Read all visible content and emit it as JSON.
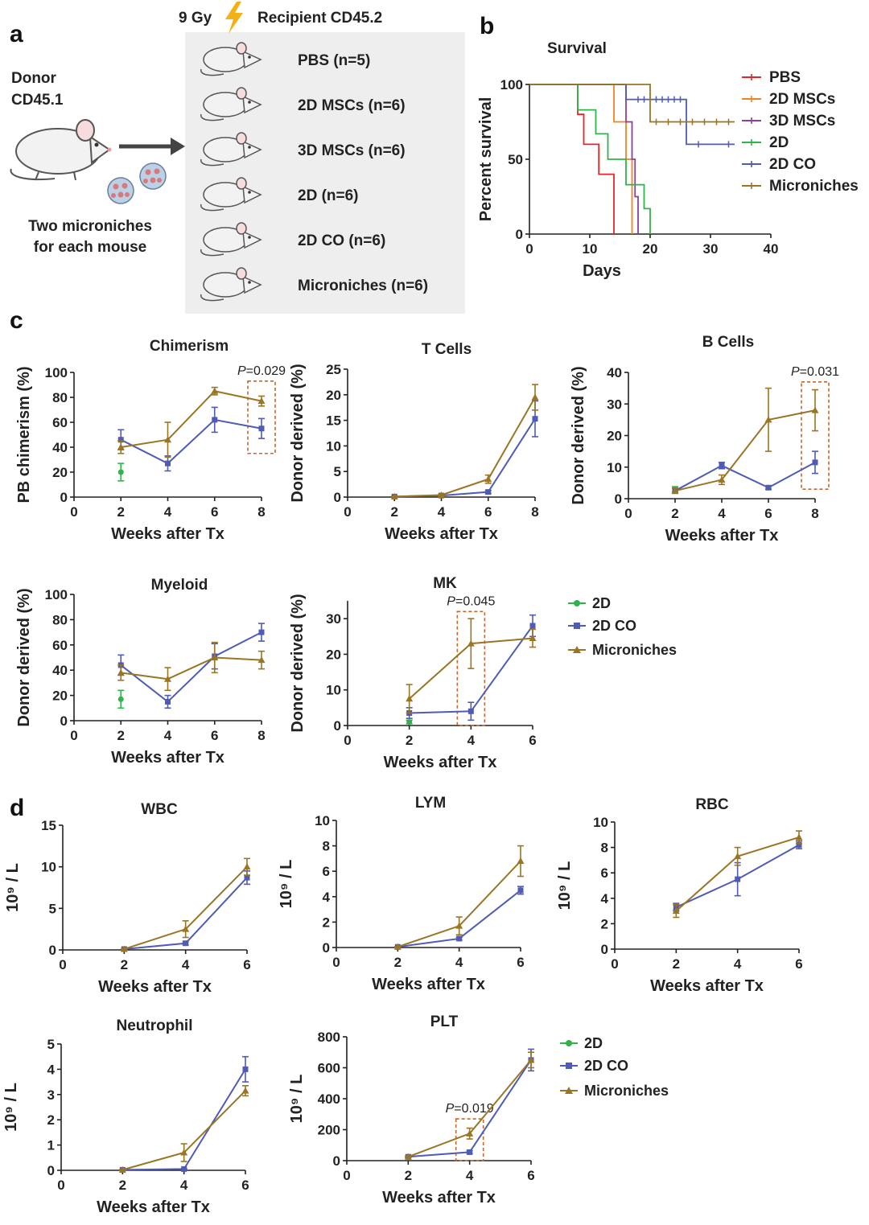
{
  "colors": {
    "PBS": "#e3262a",
    "2D MSCs": "#f0851e",
    "3D MSCs": "#8c3fa0",
    "2D": "#2fb34a",
    "2D CO": "#4f5bb5",
    "Microniches": "#9a7523",
    "highlight_box": "#c8662d"
  },
  "panel_a": {
    "letter": "a",
    "header_dose": "9 Gy",
    "header_recipient": "Recipient CD45.2",
    "donor_line1": "Donor",
    "donor_line2": "CD45.1",
    "caption_line1": "Two microniches",
    "caption_line2": "for each mouse",
    "groups": [
      "PBS  (n=5)",
      "2D MSCs (n=6)",
      "3D MSCs (n=6)",
      "2D (n=6)",
      "2D CO (n=6)",
      "Microniches (n=6)"
    ],
    "icons": [
      "mouse-icon",
      "lightning-icon",
      "arrow-right-icon",
      "microniche-icon"
    ]
  },
  "legend_cd": {
    "entries": [
      {
        "name": "2D",
        "marker": "circle"
      },
      {
        "name": "2D CO",
        "marker": "square"
      },
      {
        "name": "Microniches",
        "marker": "triangle"
      }
    ]
  },
  "chart_data": [
    {
      "id": "b",
      "panel_letter": "b",
      "type": "line",
      "step": true,
      "title": "Survival",
      "xlabel": "Days",
      "ylabel": "Percent survival",
      "xlim": [
        0,
        40
      ],
      "ylim": [
        0,
        100
      ],
      "xticks": [
        0,
        10,
        20,
        30,
        40
      ],
      "yticks": [
        0,
        50,
        100
      ],
      "legend_position": "right",
      "series": [
        {
          "name": "PBS",
          "steps": [
            [
              0,
              100
            ],
            [
              8,
              80
            ],
            [
              9,
              60
            ],
            [
              11.5,
              40
            ],
            [
              14,
              0
            ]
          ]
        },
        {
          "name": "2D MSCs",
          "steps": [
            [
              0,
              100
            ],
            [
              14,
              75
            ],
            [
              16,
              50
            ],
            [
              17,
              0
            ]
          ]
        },
        {
          "name": "3D MSCs",
          "steps": [
            [
              0,
              100
            ],
            [
              16,
              75
            ],
            [
              17,
              50
            ],
            [
              17.5,
              25
            ],
            [
              18,
              0
            ]
          ]
        },
        {
          "name": "2D",
          "steps": [
            [
              0,
              100
            ],
            [
              8,
              83
            ],
            [
              11,
              67
            ],
            [
              13,
              50
            ],
            [
              16,
              33
            ],
            [
              19,
              17
            ],
            [
              20,
              0
            ]
          ]
        },
        {
          "name": "2D CO",
          "steps": [
            [
              0,
              100
            ],
            [
              16,
              90
            ],
            [
              26,
              60
            ],
            [
              34,
              60
            ]
          ],
          "censor": [
            18,
            19,
            21,
            22,
            23,
            24,
            25,
            28,
            33
          ]
        },
        {
          "name": "Microniches",
          "steps": [
            [
              0,
              100
            ],
            [
              20,
              75
            ],
            [
              34,
              75
            ]
          ],
          "censor": [
            21,
            23,
            25,
            27,
            29,
            31,
            33
          ]
        }
      ]
    },
    {
      "id": "c1",
      "panel_letter": "c",
      "type": "line",
      "title": "Chimerism",
      "xlabel": "Weeks after Tx",
      "ylabel": "PB chimerism (%)",
      "xlim": [
        0,
        8
      ],
      "ylim": [
        0,
        100
      ],
      "xticks": [
        0,
        2,
        4,
        6,
        8
      ],
      "yticks": [
        0,
        20,
        40,
        60,
        80,
        100
      ],
      "series": [
        {
          "name": "2D",
          "x": [
            2
          ],
          "y": [
            20
          ],
          "err": [
            7
          ]
        },
        {
          "name": "2D CO",
          "x": [
            2,
            4,
            6,
            8
          ],
          "y": [
            46,
            27,
            62,
            55
          ],
          "err": [
            8,
            6,
            10,
            8
          ]
        },
        {
          "name": "Microniches",
          "x": [
            2,
            4,
            6,
            8
          ],
          "y": [
            40,
            46,
            85,
            77
          ],
          "err": [
            5,
            14,
            3,
            4
          ]
        }
      ],
      "annotation": {
        "p_label": "P",
        "p_value": "=0.029",
        "x": 8,
        "ybox": [
          35,
          93
        ]
      }
    },
    {
      "id": "c2",
      "type": "line",
      "title": "T Cells",
      "xlabel": "Weeks after Tx",
      "ylabel": "Donor derived (%)",
      "xlim": [
        0,
        8
      ],
      "ylim": [
        0,
        25
      ],
      "xticks": [
        0,
        2,
        4,
        6,
        8
      ],
      "yticks": [
        0,
        5,
        10,
        15,
        20,
        25
      ],
      "series": [
        {
          "name": "2D CO",
          "x": [
            2,
            4,
            6,
            8
          ],
          "y": [
            0.1,
            0.3,
            1,
            15.3
          ],
          "err": [
            0.1,
            0.1,
            0.3,
            3.5
          ]
        },
        {
          "name": "Microniches",
          "x": [
            2,
            4,
            6,
            8
          ],
          "y": [
            0.1,
            0.4,
            3.5,
            19.5
          ],
          "err": [
            0.1,
            0.2,
            0.8,
            2.5
          ]
        }
      ]
    },
    {
      "id": "c3",
      "type": "line",
      "title": "B Cells",
      "xlabel": "Weeks after Tx",
      "ylabel": "Donor derived (%)",
      "xlim": [
        0,
        8
      ],
      "ylim": [
        0,
        40
      ],
      "xticks": [
        0,
        2,
        4,
        6,
        8
      ],
      "yticks": [
        0,
        10,
        20,
        30,
        40
      ],
      "series": [
        {
          "name": "2D",
          "x": [
            2
          ],
          "y": [
            3
          ],
          "err": [
            0.8
          ]
        },
        {
          "name": "2D CO",
          "x": [
            2,
            4,
            6,
            8
          ],
          "y": [
            2.5,
            10.5,
            3.5,
            11.5
          ],
          "err": [
            0.8,
            1,
            0.5,
            3.5
          ]
        },
        {
          "name": "Microniches",
          "x": [
            2,
            4,
            6,
            8
          ],
          "y": [
            2.5,
            6,
            25,
            28
          ],
          "err": [
            0.8,
            1.5,
            10,
            6.5
          ]
        }
      ],
      "annotation": {
        "p_label": "P",
        "p_value": "=0.031",
        "x": 8,
        "ybox": [
          3,
          37
        ]
      }
    },
    {
      "id": "c4",
      "type": "line",
      "title": "Myeloid",
      "xlabel": "Weeks after Tx",
      "ylabel": "Donor derived (%)",
      "xlim": [
        0,
        8
      ],
      "ylim": [
        0,
        100
      ],
      "xticks": [
        0,
        2,
        4,
        6,
        8
      ],
      "yticks": [
        0,
        20,
        40,
        60,
        80,
        100
      ],
      "series": [
        {
          "name": "2D",
          "x": [
            2
          ],
          "y": [
            17
          ],
          "err": [
            7
          ]
        },
        {
          "name": "2D CO",
          "x": [
            2,
            4,
            6,
            8
          ],
          "y": [
            44,
            15,
            51,
            70
          ],
          "err": [
            8,
            5,
            10,
            7
          ]
        },
        {
          "name": "Microniches",
          "x": [
            2,
            4,
            6,
            8
          ],
          "y": [
            38,
            33,
            50,
            48
          ],
          "err": [
            6,
            9,
            12,
            7
          ]
        }
      ]
    },
    {
      "id": "c5",
      "type": "line",
      "title": "MK",
      "xlabel": "Weeks after Tx",
      "ylabel": "Donor derived (%)",
      "xlim": [
        0,
        6
      ],
      "ylim": [
        0,
        35
      ],
      "xticks": [
        0,
        2,
        4,
        6
      ],
      "yticks": [
        0,
        10,
        20,
        30
      ],
      "series": [
        {
          "name": "2D",
          "x": [
            2
          ],
          "y": [
            1
          ],
          "err": [
            0.5
          ]
        },
        {
          "name": "2D CO",
          "x": [
            2,
            4,
            6
          ],
          "y": [
            3.5,
            4,
            28
          ],
          "err": [
            1.5,
            2.5,
            3
          ]
        },
        {
          "name": "Microniches",
          "x": [
            2,
            4,
            6
          ],
          "y": [
            7.5,
            23,
            24.5
          ],
          "err": [
            4,
            7,
            2.5
          ]
        }
      ],
      "annotation": {
        "p_label": "P",
        "p_value": "=0.045",
        "x": 4,
        "ybox": [
          0,
          32
        ]
      }
    },
    {
      "id": "d1",
      "panel_letter": "d",
      "type": "line",
      "title": "WBC",
      "xlabel": "Weeks after Tx",
      "ylabel": "10⁹ / L",
      "xlim": [
        0,
        6
      ],
      "ylim": [
        0,
        15
      ],
      "xticks": [
        0,
        2,
        4,
        6
      ],
      "yticks": [
        0,
        5,
        10,
        15
      ],
      "series": [
        {
          "name": "2D CO",
          "x": [
            2,
            4,
            6
          ],
          "y": [
            0.1,
            0.8,
            8.7
          ],
          "err": [
            0.05,
            0.2,
            0.8
          ]
        },
        {
          "name": "Microniches",
          "x": [
            2,
            4,
            6
          ],
          "y": [
            0.1,
            2.5,
            10
          ],
          "err": [
            0.05,
            1,
            1
          ]
        }
      ]
    },
    {
      "id": "d2",
      "type": "line",
      "title": "LYM",
      "xlabel": "Weeks after Tx",
      "ylabel": "10⁹ / L",
      "xlim": [
        0,
        6
      ],
      "ylim": [
        0,
        10
      ],
      "xticks": [
        0,
        2,
        4,
        6
      ],
      "yticks": [
        0,
        2,
        4,
        6,
        8,
        10
      ],
      "series": [
        {
          "name": "2D",
          "x": [
            2
          ],
          "y": [
            0.05
          ],
          "err": [
            0.02
          ]
        },
        {
          "name": "2D CO",
          "x": [
            2,
            4,
            6
          ],
          "y": [
            0.05,
            0.7,
            4.5
          ],
          "err": [
            0.02,
            0.1,
            0.3
          ]
        },
        {
          "name": "Microniches",
          "x": [
            2,
            4,
            6
          ],
          "y": [
            0.05,
            1.7,
            6.8
          ],
          "err": [
            0.02,
            0.7,
            1.2
          ]
        }
      ]
    },
    {
      "id": "d3",
      "type": "line",
      "title": "RBC",
      "xlabel": "Weeks after Tx",
      "ylabel": "10⁹ / L",
      "xlim": [
        0,
        6
      ],
      "ylim": [
        0,
        10
      ],
      "xticks": [
        0,
        2,
        4,
        6
      ],
      "yticks": [
        0,
        2,
        4,
        6,
        8,
        10
      ],
      "series": [
        {
          "name": "2D",
          "x": [
            2
          ],
          "y": [
            3.3
          ],
          "err": [
            0.2
          ]
        },
        {
          "name": "2D CO",
          "x": [
            2,
            4,
            6
          ],
          "y": [
            3.3,
            5.5,
            8.2
          ],
          "err": [
            0.3,
            1.3,
            0.3
          ]
        },
        {
          "name": "Microniches",
          "x": [
            2,
            4,
            6
          ],
          "y": [
            3,
            7.3,
            8.8
          ],
          "err": [
            0.5,
            0.7,
            0.5
          ]
        }
      ]
    },
    {
      "id": "d4",
      "type": "line",
      "title": "Neutrophil",
      "xlabel": "Weeks after Tx",
      "ylabel": "10⁹ / L",
      "xlim": [
        0,
        6
      ],
      "ylim": [
        0,
        5
      ],
      "xticks": [
        0,
        2,
        4,
        6
      ],
      "yticks": [
        0,
        1,
        2,
        3,
        4,
        5
      ],
      "series": [
        {
          "name": "2D",
          "x": [
            2
          ],
          "y": [
            0.02
          ],
          "err": [
            0.01
          ]
        },
        {
          "name": "2D CO",
          "x": [
            2,
            4,
            6
          ],
          "y": [
            0.02,
            0.05,
            4
          ],
          "err": [
            0.01,
            0.02,
            0.5
          ]
        },
        {
          "name": "Microniches",
          "x": [
            2,
            4,
            6
          ],
          "y": [
            0.02,
            0.7,
            3.15
          ],
          "err": [
            0.01,
            0.35,
            0.2
          ]
        }
      ]
    },
    {
      "id": "d5",
      "type": "line",
      "title": "PLT",
      "xlabel": "Weeks after Tx",
      "ylabel": "10⁹ / L",
      "xlim": [
        0,
        6
      ],
      "ylim": [
        0,
        800
      ],
      "xticks": [
        0,
        2,
        4,
        6
      ],
      "yticks": [
        0,
        200,
        400,
        600,
        800
      ],
      "series": [
        {
          "name": "2D",
          "x": [
            2
          ],
          "y": [
            25
          ],
          "err": [
            5
          ]
        },
        {
          "name": "2D CO",
          "x": [
            2,
            4,
            6
          ],
          "y": [
            25,
            55,
            650
          ],
          "err": [
            5,
            10,
            70
          ]
        },
        {
          "name": "Microniches",
          "x": [
            2,
            4,
            6
          ],
          "y": [
            25,
            175,
            650
          ],
          "err": [
            5,
            35,
            50
          ]
        }
      ],
      "annotation": {
        "p_label": "P",
        "p_value": "=0.019",
        "x": 4,
        "ybox": [
          0,
          270
        ]
      }
    }
  ]
}
